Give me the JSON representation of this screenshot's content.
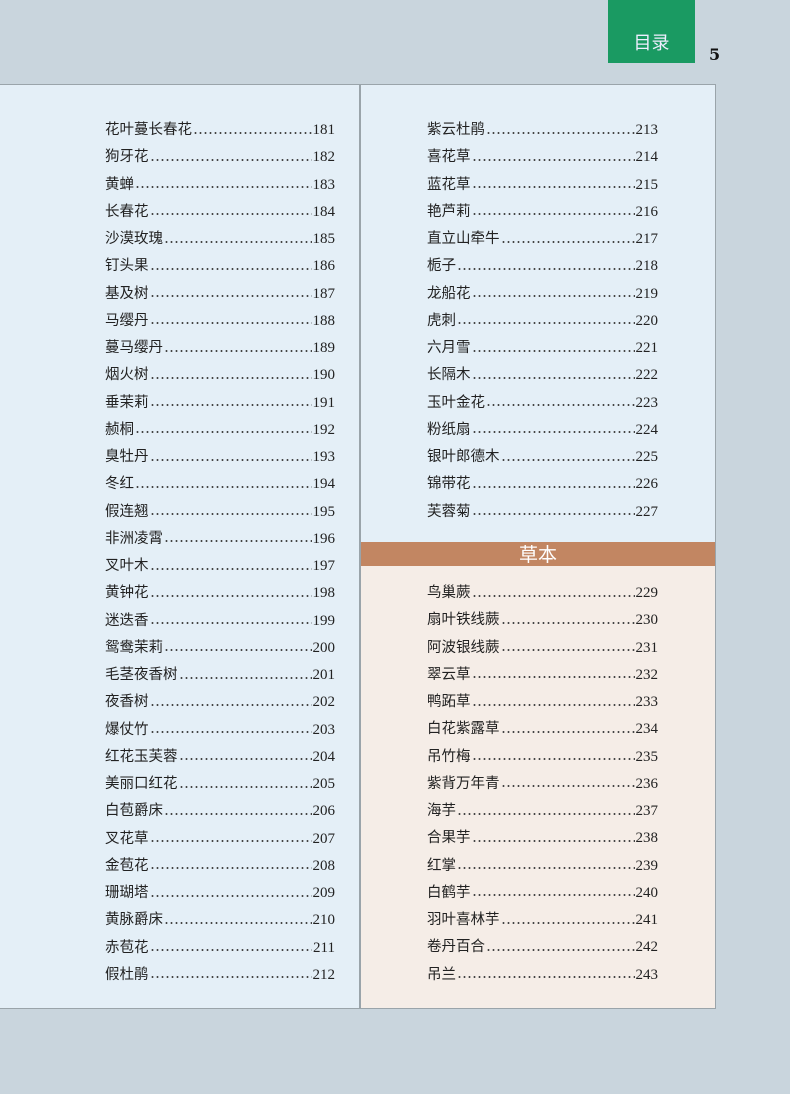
{
  "header": {
    "tab_label": "目录",
    "page_number": "5"
  },
  "section_heading": "草本",
  "colors": {
    "tab": "#1a9a62",
    "section_bar": "#c28662",
    "panel_blue": "#e4eff7",
    "panel_beige": "#f5ede7",
    "background": "#c9d5dd"
  },
  "left_column": [
    {
      "name": "花叶蔓长春花",
      "page": "181"
    },
    {
      "name": "狗牙花",
      "page": "182"
    },
    {
      "name": "黄蝉",
      "page": "183"
    },
    {
      "name": "长春花",
      "page": "184"
    },
    {
      "name": "沙漠玫瑰",
      "page": "185"
    },
    {
      "name": "钉头果",
      "page": "186"
    },
    {
      "name": "基及树",
      "page": "187"
    },
    {
      "name": "马缨丹",
      "page": "188"
    },
    {
      "name": "蔓马缨丹",
      "page": "189"
    },
    {
      "name": "烟火树",
      "page": "190"
    },
    {
      "name": "垂茉莉",
      "page": "191"
    },
    {
      "name": "赪桐",
      "page": "192"
    },
    {
      "name": "臭牡丹",
      "page": "193"
    },
    {
      "name": "冬红",
      "page": "194"
    },
    {
      "name": "假连翘",
      "page": "195"
    },
    {
      "name": "非洲凌霄",
      "page": "196"
    },
    {
      "name": "叉叶木",
      "page": "197"
    },
    {
      "name": "黄钟花",
      "page": "198"
    },
    {
      "name": "迷迭香",
      "page": "199"
    },
    {
      "name": "鸳鸯茉莉",
      "page": "200"
    },
    {
      "name": "毛茎夜香树",
      "page": "201"
    },
    {
      "name": "夜香树",
      "page": "202"
    },
    {
      "name": "爆仗竹",
      "page": "203"
    },
    {
      "name": "红花玉芙蓉",
      "page": "204"
    },
    {
      "name": "美丽口红花",
      "page": "205"
    },
    {
      "name": "白苞爵床",
      "page": "206"
    },
    {
      "name": "叉花草",
      "page": "207"
    },
    {
      "name": "金苞花",
      "page": "208"
    },
    {
      "name": "珊瑚塔",
      "page": "209"
    },
    {
      "name": "黄脉爵床",
      "page": "210"
    },
    {
      "name": "赤苞花",
      "page": "211"
    },
    {
      "name": "假杜鹃",
      "page": "212"
    }
  ],
  "right_column_top": [
    {
      "name": "紫云杜鹃",
      "page": "213"
    },
    {
      "name": "喜花草",
      "page": "214"
    },
    {
      "name": "蓝花草",
      "page": "215"
    },
    {
      "name": "艳芦莉",
      "page": "216"
    },
    {
      "name": "直立山牵牛",
      "page": "217"
    },
    {
      "name": "栀子",
      "page": "218"
    },
    {
      "name": "龙船花",
      "page": "219"
    },
    {
      "name": "虎刺",
      "page": "220"
    },
    {
      "name": "六月雪",
      "page": "221"
    },
    {
      "name": "长隔木",
      "page": "222"
    },
    {
      "name": "玉叶金花",
      "page": "223"
    },
    {
      "name": "粉纸扇",
      "page": "224"
    },
    {
      "name": "银叶郎德木",
      "page": "225"
    },
    {
      "name": "锦带花",
      "page": "226"
    },
    {
      "name": "芙蓉菊",
      "page": "227"
    }
  ],
  "right_column_bottom": [
    {
      "name": "鸟巢蕨",
      "page": "229"
    },
    {
      "name": "扇叶铁线蕨",
      "page": "230"
    },
    {
      "name": "阿波银线蕨",
      "page": "231"
    },
    {
      "name": "翠云草",
      "page": "232"
    },
    {
      "name": "鸭跖草",
      "page": "233"
    },
    {
      "name": "白花紫露草",
      "page": "234"
    },
    {
      "name": "吊竹梅",
      "page": "235"
    },
    {
      "name": "紫背万年青",
      "page": "236"
    },
    {
      "name": "海芋",
      "page": "237"
    },
    {
      "name": "合果芋",
      "page": "238"
    },
    {
      "name": "红掌",
      "page": "239"
    },
    {
      "name": "白鹤芋",
      "page": "240"
    },
    {
      "name": "羽叶喜林芋",
      "page": "241"
    },
    {
      "name": "卷丹百合",
      "page": "242"
    },
    {
      "name": "吊兰",
      "page": "243"
    }
  ]
}
